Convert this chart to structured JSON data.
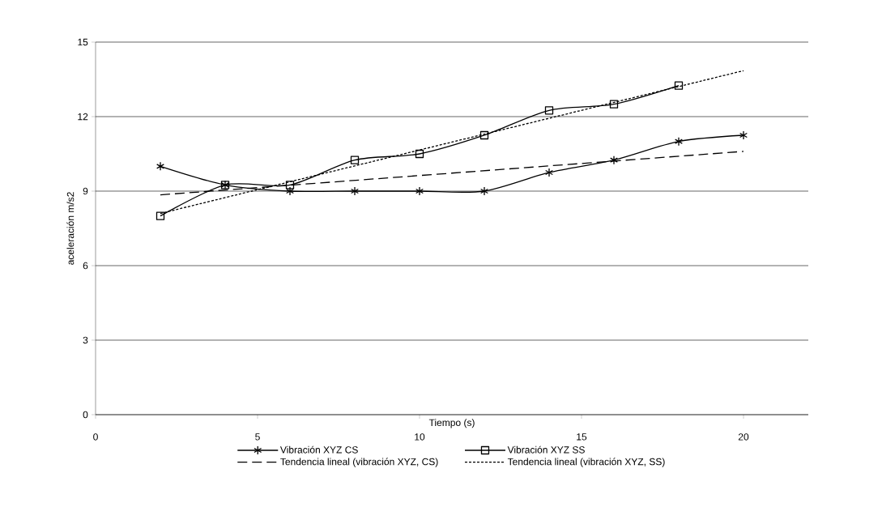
{
  "chart_data": {
    "type": "line",
    "xlabel": "Tiempo (s)",
    "ylabel": "aceleración m/s2",
    "xlim": [
      0,
      22
    ],
    "xticks": [
      0,
      5,
      10,
      15,
      20
    ],
    "ylim": [
      0,
      15
    ],
    "yticks": [
      0,
      3,
      6,
      9,
      12,
      15
    ],
    "grid": "y",
    "legend": "bottom",
    "series": [
      {
        "name": "Vibración  XYZ CS",
        "color": "#000000",
        "marker": "cross",
        "line_style": "solid",
        "x": [
          2,
          4,
          6,
          8,
          10,
          12,
          14,
          16,
          18,
          20
        ],
        "values": [
          10,
          9.25,
          9,
          9,
          9,
          9,
          9.75,
          10.25,
          11,
          11.25
        ]
      },
      {
        "name": "Vibración XYZ  SS",
        "color": "#000000",
        "marker": "square",
        "line_style": "solid",
        "x": [
          2,
          4,
          6,
          8,
          10,
          12,
          14,
          16,
          18
        ],
        "values": [
          8,
          9.25,
          9.25,
          10.25,
          10.5,
          11.25,
          12.25,
          12.5,
          13.25
        ]
      },
      {
        "name": "Tendencia lineal (vibración XYZ, CS)",
        "color": "#000000",
        "marker": "none",
        "line_style": "dashed",
        "x": [
          2,
          20
        ],
        "values": [
          8.85,
          10.6
        ]
      },
      {
        "name": "Tendencia lineal (vibración XYZ, SS)",
        "color": "#000000",
        "marker": "none",
        "line_style": "dotted",
        "x": [
          2,
          20
        ],
        "values": [
          8.1,
          13.85
        ]
      }
    ]
  }
}
